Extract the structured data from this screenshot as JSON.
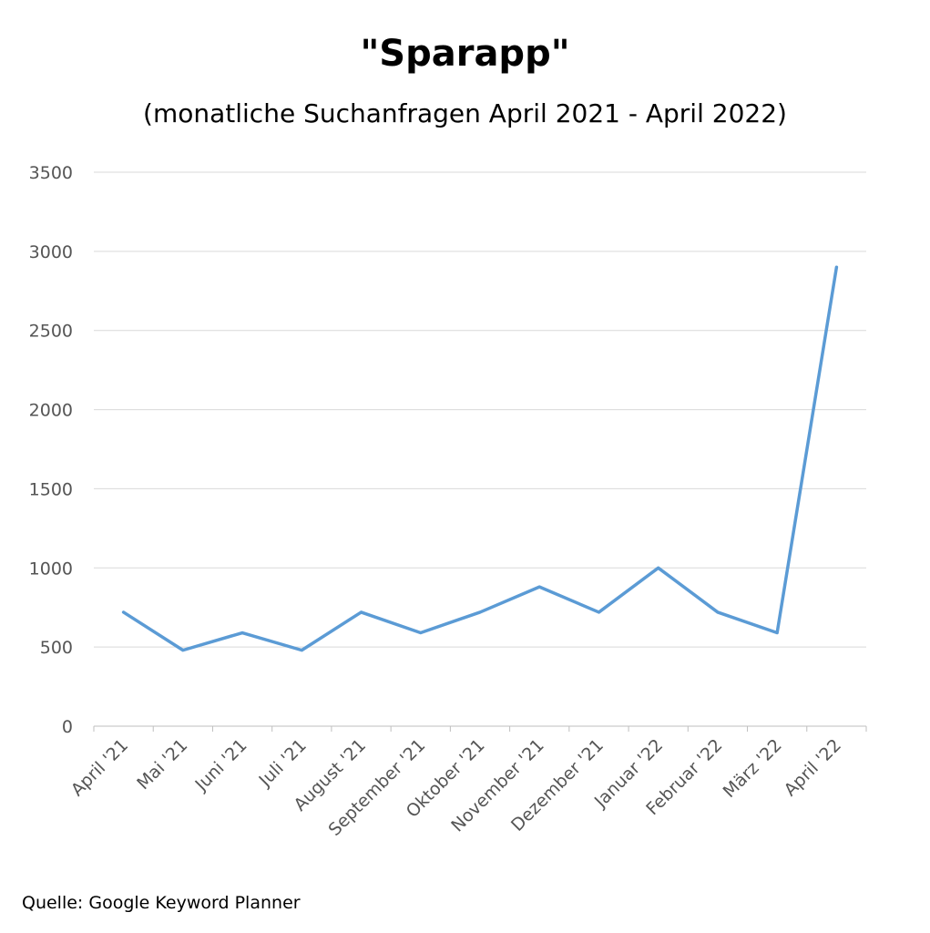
{
  "title": "\"Sparapp\"",
  "subtitle": "(monatliche Suchanfragen April 2021 - April 2022)",
  "source": "Quelle: Google Keyword Planner",
  "colors": {
    "line": "#5b9bd5",
    "grid": "#d9d9d9",
    "axis": "#bfbfbf",
    "tick_text": "#555555"
  },
  "chart_data": {
    "type": "line",
    "title": "\"Sparapp\"",
    "subtitle": "(monatliche Suchanfragen April 2021 - April 2022)",
    "categories": [
      "April '21",
      "Mai '21",
      "Juni '21",
      "Juli '21",
      "August '21",
      "September '21",
      "Oktober '21",
      "November '21",
      "Dezember '21",
      "Januar '22",
      "Februar '22",
      "März '22",
      "April '22"
    ],
    "series": [
      {
        "values": [
          720,
          480,
          590,
          480,
          720,
          590,
          720,
          880,
          720,
          1000,
          720,
          590,
          2900
        ]
      }
    ],
    "ylim": [
      0,
      3500
    ],
    "yticks": [
      0,
      500,
      1000,
      1500,
      2000,
      2500,
      3000,
      3500
    ],
    "grid": true,
    "legend": "none"
  }
}
